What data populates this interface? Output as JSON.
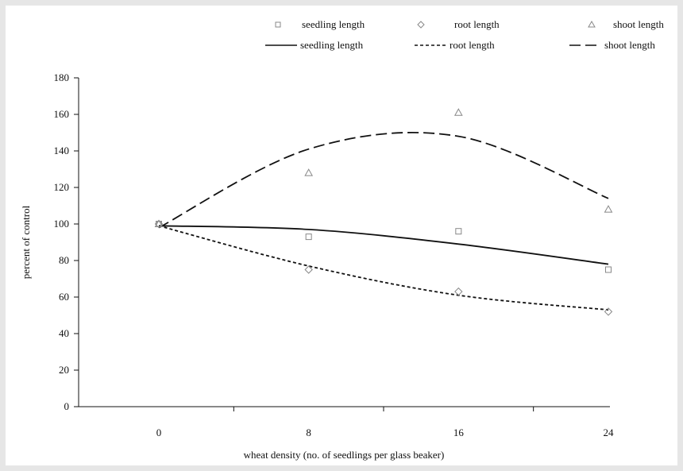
{
  "chart_data": {
    "type": "scatter",
    "title": "",
    "xlabel": "wheat density (no. of seedlings per glass beaker)",
    "ylabel": "percent of control",
    "categories": [
      "0",
      "8",
      "16",
      "24"
    ],
    "x": [
      0,
      8,
      16,
      24
    ],
    "ylim": [
      0,
      180
    ],
    "y_ticks": [
      0,
      20,
      40,
      60,
      80,
      100,
      120,
      140,
      160,
      180
    ],
    "grid": false,
    "legend_position": "top",
    "points": [
      {
        "name": "seedling length",
        "marker": "square",
        "values": [
          100,
          93,
          96,
          75
        ]
      },
      {
        "name": "root length",
        "marker": "diamond",
        "values": [
          100,
          75,
          63,
          52
        ]
      },
      {
        "name": "shoot length",
        "marker": "triangle",
        "values": [
          100,
          128,
          161,
          108
        ]
      }
    ],
    "trendlines": [
      {
        "name": "seedling length",
        "style": "solid",
        "values": [
          99,
          97,
          89,
          78
        ]
      },
      {
        "name": "root length",
        "style": "dashed",
        "values": [
          99,
          77,
          61,
          53
        ]
      },
      {
        "name": "shoot length",
        "style": "long-dash",
        "values": [
          98,
          141,
          148,
          114
        ]
      }
    ],
    "colors": {
      "marks": "#111111",
      "markers": "#888888",
      "background": "#ffffff",
      "frame": "#e6e6e6"
    }
  }
}
